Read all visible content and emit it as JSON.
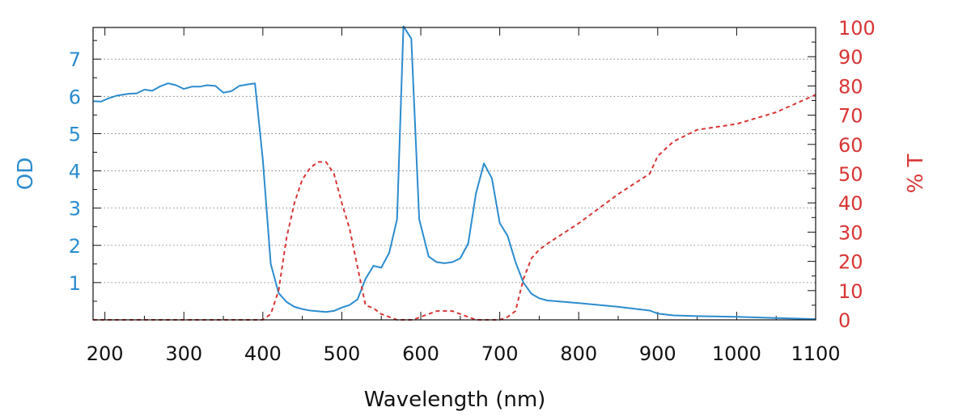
{
  "chart_data": {
    "type": "line",
    "title": "",
    "xlabel": "Wavelength (nm)",
    "ylabel": "OD",
    "y2label": "% T",
    "xlim": [
      185,
      1100
    ],
    "ylim": [
      0,
      7.85
    ],
    "y2lim": [
      0,
      100
    ],
    "grid": "dotted horizontal",
    "x_ticks": [
      200,
      300,
      400,
      500,
      600,
      700,
      800,
      900,
      1000,
      1100
    ],
    "y_ticks": [
      1,
      2,
      3,
      4,
      5,
      6,
      7
    ],
    "y2_ticks": [
      0,
      10,
      20,
      30,
      40,
      50,
      60,
      70,
      80,
      90,
      100
    ],
    "colors": {
      "od": "#2b8ccf",
      "transmission": "#d93535"
    },
    "series": [
      {
        "name": "OD",
        "axis": "left",
        "style": "solid",
        "x": [
          185,
          195,
          205,
          215,
          230,
          240,
          250,
          260,
          270,
          280,
          290,
          300,
          310,
          320,
          330,
          340,
          350,
          360,
          370,
          380,
          390,
          400,
          410,
          420,
          430,
          440,
          450,
          460,
          470,
          480,
          490,
          500,
          510,
          520,
          530,
          540,
          550,
          560,
          570,
          578,
          588,
          598,
          610,
          620,
          630,
          640,
          650,
          660,
          670,
          680,
          690,
          700,
          710,
          720,
          730,
          740,
          750,
          760,
          800,
          850,
          890,
          900,
          920,
          950,
          1000,
          1050,
          1100
        ],
        "y": [
          5.87,
          5.86,
          5.95,
          6.02,
          6.07,
          6.08,
          6.18,
          6.15,
          6.27,
          6.35,
          6.3,
          6.2,
          6.26,
          6.26,
          6.3,
          6.28,
          6.1,
          6.14,
          6.28,
          6.32,
          6.35,
          4.3,
          1.5,
          0.72,
          0.48,
          0.35,
          0.29,
          0.25,
          0.23,
          0.21,
          0.24,
          0.33,
          0.4,
          0.55,
          1.1,
          1.45,
          1.4,
          1.8,
          2.7,
          7.88,
          7.55,
          2.7,
          1.7,
          1.55,
          1.52,
          1.55,
          1.65,
          2.05,
          3.4,
          4.2,
          3.8,
          2.6,
          2.25,
          1.55,
          1.0,
          0.7,
          0.58,
          0.52,
          0.45,
          0.35,
          0.25,
          0.17,
          0.12,
          0.1,
          0.08,
          0.05,
          0.02
        ]
      },
      {
        "name": "% T",
        "axis": "right",
        "style": "dashed",
        "x": [
          185,
          300,
          400,
          410,
          420,
          430,
          440,
          450,
          460,
          470,
          480,
          490,
          500,
          510,
          520,
          530,
          540,
          550,
          560,
          570,
          580,
          590,
          600,
          610,
          620,
          630,
          640,
          650,
          660,
          670,
          680,
          690,
          700,
          710,
          720,
          730,
          740,
          750,
          760,
          800,
          850,
          890,
          900,
          920,
          950,
          1000,
          1050,
          1100
        ],
        "y": [
          0,
          0,
          0,
          2,
          10,
          28,
          40,
          48,
          52,
          54,
          54,
          50,
          40,
          31,
          18,
          5,
          4,
          2,
          1,
          0,
          0,
          0,
          1,
          2,
          3,
          3,
          3,
          2,
          1,
          0,
          0,
          0,
          0,
          1,
          3,
          14,
          21,
          24,
          26,
          33,
          43,
          50,
          56,
          61,
          65,
          67,
          71,
          77
        ]
      }
    ]
  }
}
